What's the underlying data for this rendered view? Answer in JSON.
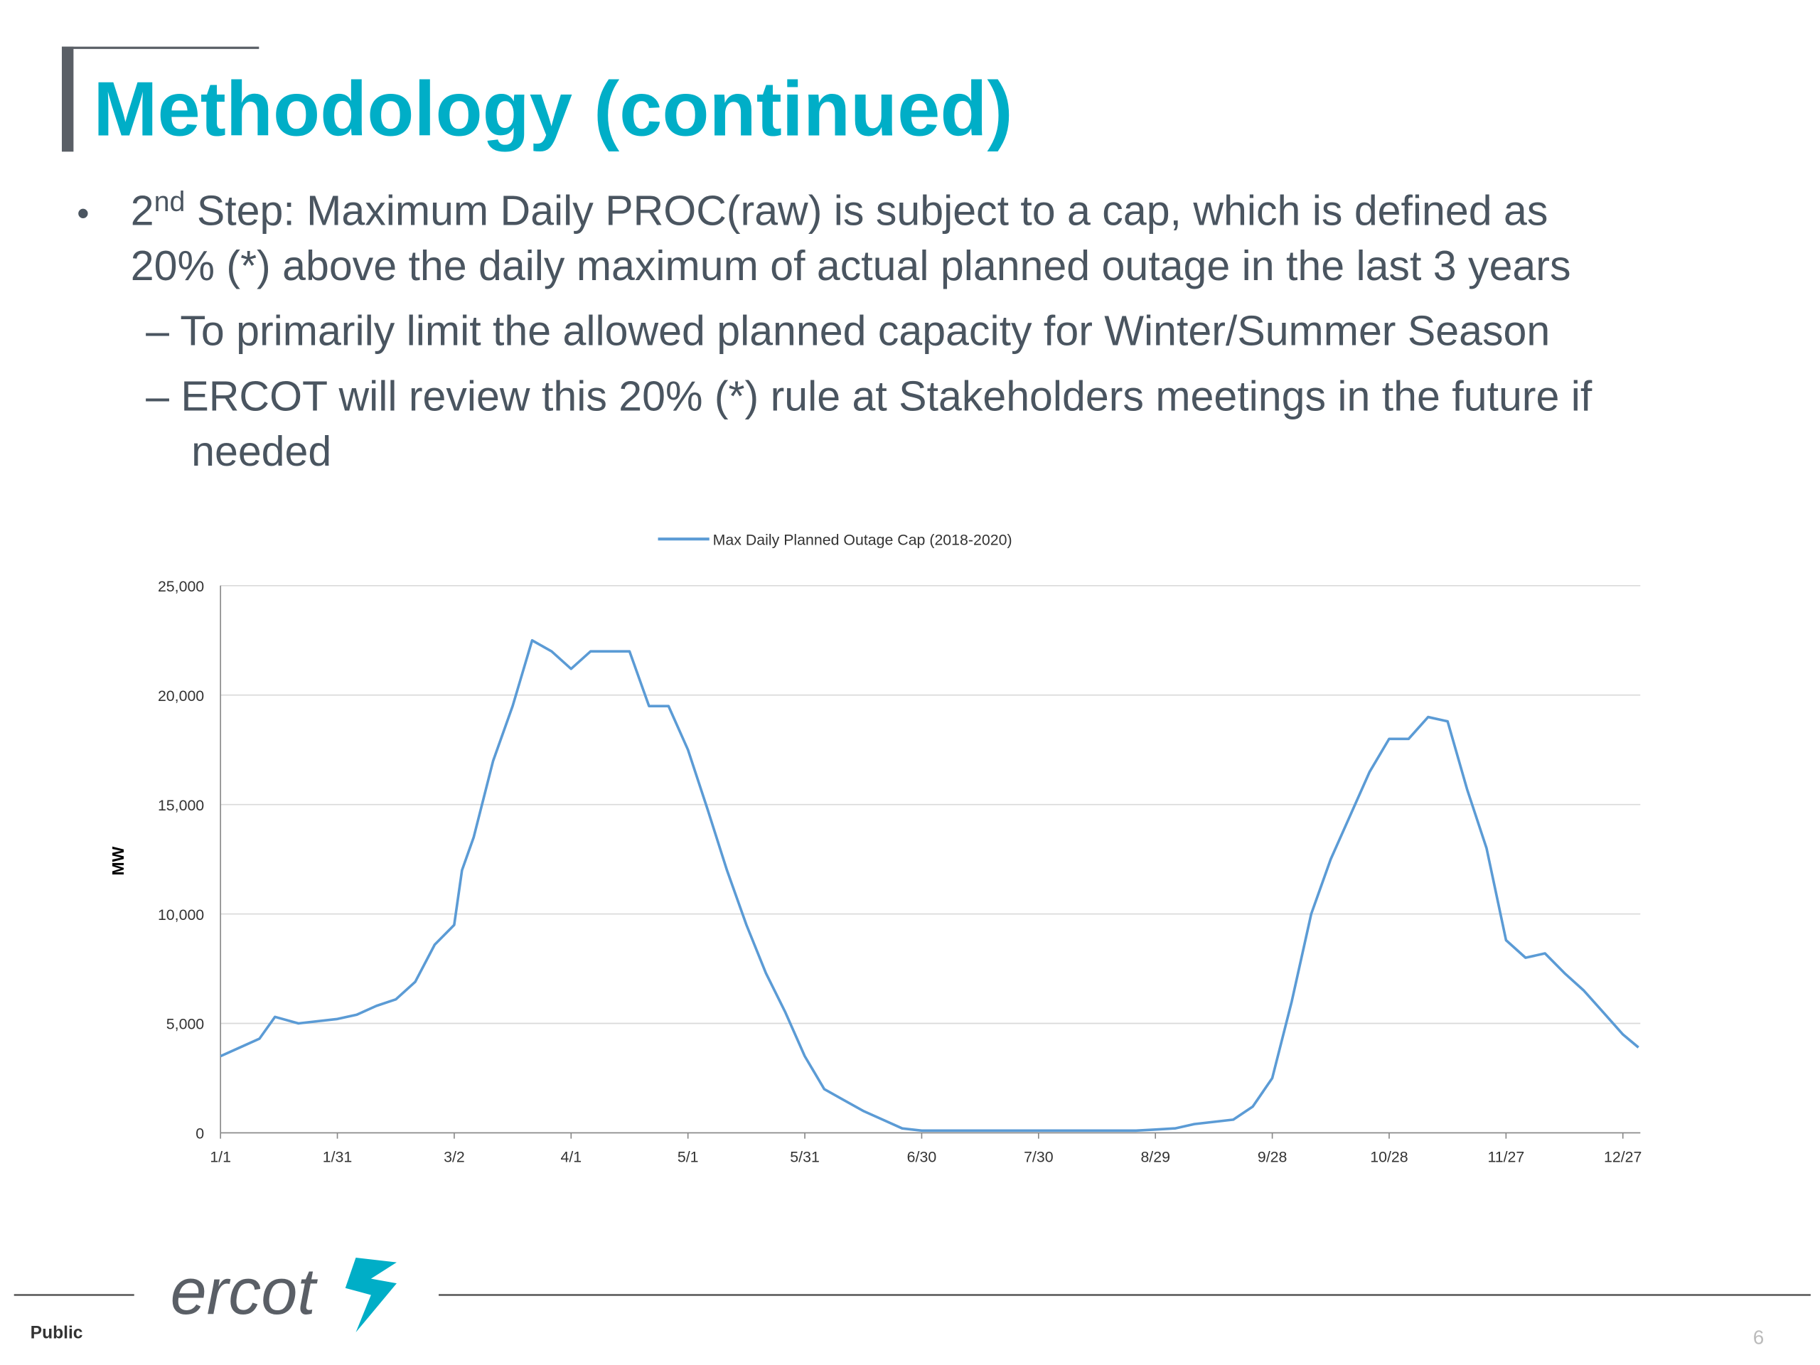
{
  "header": {
    "title": "Methodology (continued)"
  },
  "bullets": [
    {
      "number": "2",
      "sup": "nd",
      "lines": [
        " Step: Maximum Daily PROC(raw) is subject to a cap, which is defined as",
        "20% (*) above the daily maximum of actual planned outage in the last 3 years"
      ]
    },
    {
      "lines": [
        "– To primarily limit the allowed planned capacity for Winter/Summer Season"
      ]
    },
    {
      "lines": [
        "– ERCOT will review this 20% (*) rule at Stakeholders meetings in the future if",
        "needed"
      ]
    }
  ],
  "chart_data": {
    "type": "line",
    "y_label": "MW",
    "series": [
      {
        "name": "Max Daily Planned Outage Cap (2018-2020)",
        "color": "#5b9bd5",
        "x": [
          0,
          5,
          10,
          14,
          20,
          25,
          30,
          35,
          40,
          45,
          50,
          55,
          60,
          62,
          65,
          70,
          75,
          80,
          85,
          90,
          95,
          100,
          105,
          110,
          115,
          120,
          125,
          130,
          135,
          140,
          145,
          150,
          155,
          160,
          165,
          170,
          175,
          180,
          190,
          200,
          210,
          220,
          230,
          235,
          240,
          245,
          250,
          255,
          260,
          265,
          270,
          275,
          280,
          285,
          290,
          295,
          300,
          305,
          310,
          315,
          320,
          325,
          330,
          335,
          340,
          345,
          350,
          355,
          360,
          364
        ],
        "values": [
          3500,
          3900,
          4300,
          5300,
          5000,
          5100,
          5200,
          5400,
          5800,
          6100,
          6900,
          8600,
          9500,
          12000,
          13500,
          17000,
          19500,
          22500,
          22000,
          21200,
          22000,
          22000,
          22000,
          19500,
          19500,
          17500,
          14800,
          12000,
          9500,
          7300,
          5500,
          3500,
          2000,
          1500,
          1000,
          600,
          200,
          100,
          100,
          100,
          100,
          100,
          100,
          100,
          150,
          200,
          400,
          500,
          600,
          1200,
          2500,
          6000,
          10000,
          12500,
          14500,
          16500,
          18000,
          18000,
          19000,
          18800,
          15700,
          13000,
          8800,
          8000,
          8200,
          7300,
          6500,
          5500,
          4500,
          3900
        ]
      }
    ],
    "xlim": [
      0,
      365
    ],
    "xticks": [
      {
        "value": 0,
        "label": "1/1"
      },
      {
        "value": 30,
        "label": "1/31"
      },
      {
        "value": 60,
        "label": "3/2"
      },
      {
        "value": 90,
        "label": "4/1"
      },
      {
        "value": 120,
        "label": "5/1"
      },
      {
        "value": 150,
        "label": "5/31"
      },
      {
        "value": 180,
        "label": "6/30"
      },
      {
        "value": 210,
        "label": "7/30"
      },
      {
        "value": 240,
        "label": "8/29"
      },
      {
        "value": 270,
        "label": "9/28"
      },
      {
        "value": 300,
        "label": "10/28"
      },
      {
        "value": 330,
        "label": "11/27"
      },
      {
        "value": 360,
        "label": "12/27"
      }
    ],
    "ylim": [
      0,
      25000
    ],
    "yticks": [
      0,
      {
        "value": 5000,
        "label": "5,000"
      },
      {
        "value": 10000,
        "label": "10,000"
      },
      {
        "value": 15000,
        "label": "15,000"
      },
      {
        "value": 20000,
        "label": "20,000"
      },
      {
        "value": 25000,
        "label": "25,000"
      }
    ],
    "grid": true,
    "legend": "top"
  },
  "footer": {
    "logo": "ercot",
    "classification": "Public",
    "page": "6"
  }
}
